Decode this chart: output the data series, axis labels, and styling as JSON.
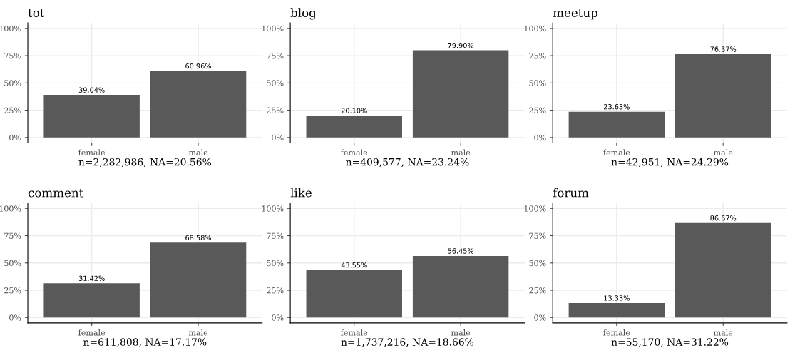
{
  "chart_data": [
    {
      "type": "bar",
      "title": "tot",
      "xlabel": "n=2,282,986, NA=20.56%",
      "categories": [
        "female",
        "male"
      ],
      "values": [
        39.04,
        60.96
      ],
      "value_labels": [
        "39.04%",
        "60.96%"
      ],
      "color": "#595959",
      "ylim": [
        -5,
        105
      ],
      "yticks": [
        {
          "value": 0,
          "label": "0%"
        },
        {
          "value": 25,
          "label": "25%"
        },
        {
          "value": 50,
          "label": "50%"
        },
        {
          "value": 75,
          "label": "75%"
        },
        {
          "value": 100,
          "label": "100%"
        }
      ],
      "grid": true
    },
    {
      "type": "bar",
      "title": "blog",
      "xlabel": "n=409,577, NA=23.24%",
      "categories": [
        "female",
        "male"
      ],
      "values": [
        20.1,
        79.9
      ],
      "value_labels": [
        "20.10%",
        "79.90%"
      ],
      "color": "#595959",
      "ylim": [
        -5,
        105
      ],
      "yticks": [
        {
          "value": 0,
          "label": "0%"
        },
        {
          "value": 25,
          "label": "25%"
        },
        {
          "value": 50,
          "label": "50%"
        },
        {
          "value": 75,
          "label": "75%"
        },
        {
          "value": 100,
          "label": "100%"
        }
      ],
      "grid": true
    },
    {
      "type": "bar",
      "title": "meetup",
      "xlabel": "n=42,951, NA=24.29%",
      "categories": [
        "female",
        "male"
      ],
      "values": [
        23.63,
        76.37
      ],
      "value_labels": [
        "23.63%",
        "76.37%"
      ],
      "color": "#595959",
      "ylim": [
        -5,
        105
      ],
      "yticks": [
        {
          "value": 0,
          "label": "0%"
        },
        {
          "value": 25,
          "label": "25%"
        },
        {
          "value": 50,
          "label": "50%"
        },
        {
          "value": 75,
          "label": "75%"
        },
        {
          "value": 100,
          "label": "100%"
        }
      ],
      "grid": true
    },
    {
      "type": "bar",
      "title": "comment",
      "xlabel": "n=611,808, NA=17.17%",
      "categories": [
        "female",
        "male"
      ],
      "values": [
        31.42,
        68.58
      ],
      "value_labels": [
        "31.42%",
        "68.58%"
      ],
      "color": "#595959",
      "ylim": [
        -5,
        105
      ],
      "yticks": [
        {
          "value": 0,
          "label": "0%"
        },
        {
          "value": 25,
          "label": "25%"
        },
        {
          "value": 50,
          "label": "50%"
        },
        {
          "value": 75,
          "label": "75%"
        },
        {
          "value": 100,
          "label": "100%"
        }
      ],
      "grid": true
    },
    {
      "type": "bar",
      "title": "like",
      "xlabel": "n=1,737,216, NA=18.66%",
      "categories": [
        "female",
        "male"
      ],
      "values": [
        43.55,
        56.45
      ],
      "value_labels": [
        "43.55%",
        "56.45%"
      ],
      "color": "#595959",
      "ylim": [
        -5,
        105
      ],
      "yticks": [
        {
          "value": 0,
          "label": "0%"
        },
        {
          "value": 25,
          "label": "25%"
        },
        {
          "value": 50,
          "label": "50%"
        },
        {
          "value": 75,
          "label": "75%"
        },
        {
          "value": 100,
          "label": "100%"
        }
      ],
      "grid": true
    },
    {
      "type": "bar",
      "title": "forum",
      "xlabel": "n=55,170, NA=31.22%",
      "categories": [
        "female",
        "male"
      ],
      "values": [
        13.33,
        86.67
      ],
      "value_labels": [
        "13.33%",
        "86.67%"
      ],
      "color": "#595959",
      "ylim": [
        -5,
        105
      ],
      "yticks": [
        {
          "value": 0,
          "label": "0%"
        },
        {
          "value": 25,
          "label": "25%"
        },
        {
          "value": 50,
          "label": "50%"
        },
        {
          "value": 75,
          "label": "75%"
        },
        {
          "value": 100,
          "label": "100%"
        }
      ],
      "grid": true
    }
  ]
}
